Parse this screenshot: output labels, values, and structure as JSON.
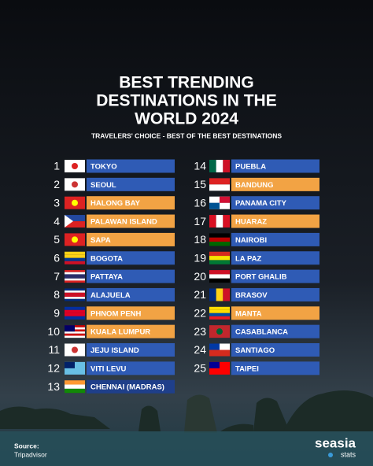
{
  "title": [
    "BEST TRENDING",
    "DESTINATIONS IN THE",
    "WORLD 2024"
  ],
  "subtitle": "TRAVELERS' CHOICE - BEST OF THE BEST DESTINATIONS",
  "rankings": [
    {
      "rank": 1,
      "name": "TOKYO",
      "color": "#2f5bb5"
    },
    {
      "rank": 2,
      "name": "SEOUL",
      "color": "#2f5bb5"
    },
    {
      "rank": 3,
      "name": "HALONG BAY",
      "color": "#f2a344"
    },
    {
      "rank": 4,
      "name": "PALAWAN ISLAND",
      "color": "#f2a344"
    },
    {
      "rank": 5,
      "name": "SAPA",
      "color": "#f2a344"
    },
    {
      "rank": 6,
      "name": "BOGOTA",
      "color": "#2f5bb5"
    },
    {
      "rank": 7,
      "name": "PATTAYA",
      "color": "#2f5bb5"
    },
    {
      "rank": 8,
      "name": "ALAJUELA",
      "color": "#2f5bb5"
    },
    {
      "rank": 9,
      "name": "PHNOM PENH",
      "color": "#f2a344"
    },
    {
      "rank": 10,
      "name": "KUALA LUMPUR",
      "color": "#f2a344"
    },
    {
      "rank": 11,
      "name": "JEJU ISLAND",
      "color": "#2f5bb5"
    },
    {
      "rank": 12,
      "name": "VITI LEVU",
      "color": "#2f5bb5"
    },
    {
      "rank": 13,
      "name": "CHENNAI (MADRAS)",
      "color": "#1f3f8a"
    },
    {
      "rank": 14,
      "name": "PUEBLA",
      "color": "#2f5bb5"
    },
    {
      "rank": 15,
      "name": "BANDUNG",
      "color": "#f2a344"
    },
    {
      "rank": 16,
      "name": "PANAMA CITY",
      "color": "#2f5bb5"
    },
    {
      "rank": 17,
      "name": "HUARAZ",
      "color": "#f2a344"
    },
    {
      "rank": 18,
      "name": "NAIROBI",
      "color": "#2f5bb5"
    },
    {
      "rank": 19,
      "name": "LA PAZ",
      "color": "#2f5bb5"
    },
    {
      "rank": 20,
      "name": "PORT GHALIB",
      "color": "#2f5bb5"
    },
    {
      "rank": 21,
      "name": "BRASOV",
      "color": "#2f5bb5"
    },
    {
      "rank": 22,
      "name": "MANTA",
      "color": "#f2a344"
    },
    {
      "rank": 23,
      "name": "CASABLANCA",
      "color": "#2f5bb5"
    },
    {
      "rank": 24,
      "name": "SANTIAGO",
      "color": "#2f5bb5"
    },
    {
      "rank": 25,
      "name": "TAIPEI",
      "color": "#2f5bb5"
    }
  ],
  "source": {
    "label": "Source:",
    "name": "Tripadvisor"
  },
  "logo": {
    "name": "seasia",
    "sub": "stats"
  }
}
